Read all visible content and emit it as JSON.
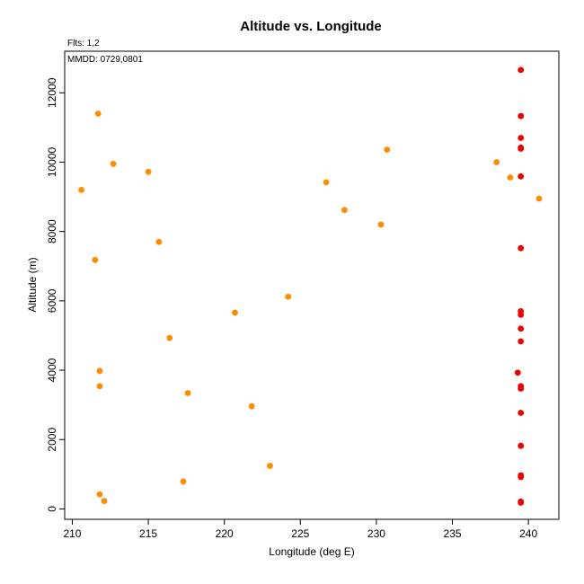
{
  "chart_data": {
    "type": "scatter",
    "title": "Altitude vs. Longitude",
    "xlabel": "Longitude (deg E)",
    "ylabel": "Altitude (m)",
    "annotations": [
      "Flts: 1,2",
      "MMDD: 0729,0801"
    ],
    "xlim": [
      209.5,
      242
    ],
    "ylim": [
      -300,
      13200
    ],
    "xticks": [
      210,
      215,
      220,
      225,
      230,
      235,
      240
    ],
    "yticks": [
      0,
      2000,
      4000,
      6000,
      8000,
      10000,
      12000
    ],
    "grid": false,
    "colors": {
      "flight_1": "#ff8c00",
      "flight_2": "#ee0000"
    },
    "series": [
      {
        "color": "#ff8c00",
        "points": [
          [
            211.7,
            11400
          ],
          [
            212.7,
            9950
          ],
          [
            215.0,
            9720
          ],
          [
            210.6,
            9200
          ],
          [
            215.7,
            7700
          ],
          [
            211.5,
            7180
          ],
          [
            220.7,
            5660
          ],
          [
            224.2,
            6120
          ],
          [
            216.4,
            4930
          ],
          [
            211.8,
            3980
          ],
          [
            211.8,
            3540
          ],
          [
            217.6,
            3340
          ],
          [
            221.8,
            2960
          ],
          [
            223.0,
            1240
          ],
          [
            217.3,
            790
          ],
          [
            211.8,
            420
          ],
          [
            212.1,
            230
          ],
          [
            226.7,
            9420
          ],
          [
            227.9,
            8620
          ],
          [
            230.3,
            8200
          ],
          [
            230.7,
            10360
          ],
          [
            237.9,
            10000
          ],
          [
            238.8,
            9560
          ],
          [
            240.7,
            8950
          ]
        ]
      },
      {
        "color": "#ee0000",
        "points": [
          [
            239.5,
            12660
          ],
          [
            239.5,
            11330
          ],
          [
            239.5,
            10700
          ],
          [
            239.5,
            10420
          ],
          [
            239.5,
            10390
          ],
          [
            239.5,
            9590
          ],
          [
            239.5,
            7520
          ],
          [
            239.5,
            5700
          ],
          [
            239.5,
            5600
          ],
          [
            239.5,
            5200
          ],
          [
            239.5,
            4830
          ],
          [
            239.3,
            3930
          ],
          [
            239.5,
            3540
          ],
          [
            239.5,
            3470
          ],
          [
            239.5,
            2770
          ],
          [
            239.5,
            1820
          ],
          [
            239.5,
            970
          ],
          [
            239.5,
            920
          ],
          [
            239.5,
            210
          ],
          [
            239.5,
            180
          ]
        ]
      }
    ]
  }
}
